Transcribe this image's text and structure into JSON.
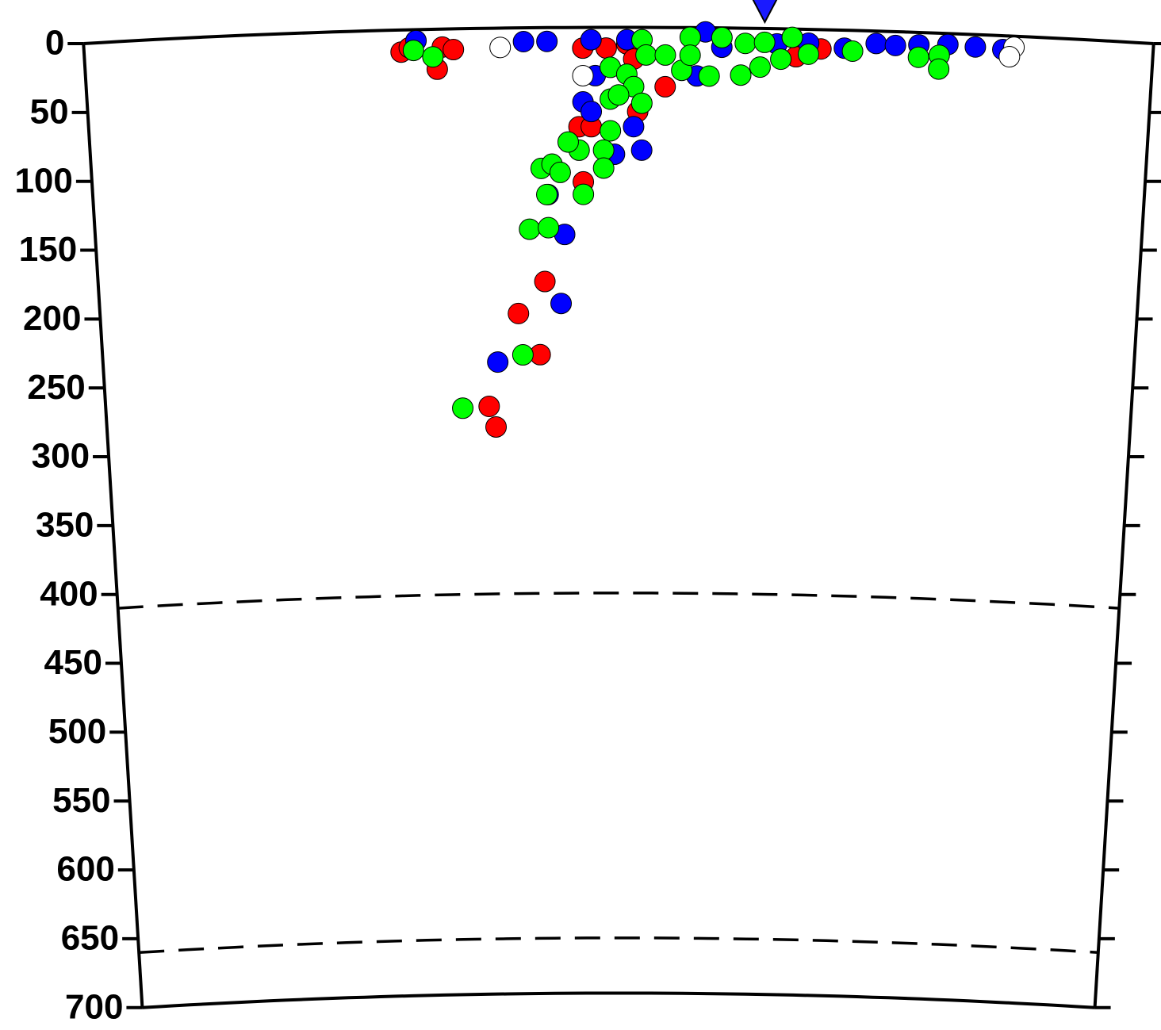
{
  "chart_data": {
    "type": "scatter",
    "xlim": [
      -388,
      388
    ],
    "ylim": [
      0,
      700
    ],
    "yticks": [
      0,
      50,
      100,
      150,
      200,
      250,
      300,
      350,
      400,
      450,
      500,
      550,
      600,
      650,
      700
    ],
    "reference_depths": [
      410,
      660
    ],
    "station": {
      "x": 106,
      "color": "#1a1aff"
    },
    "series": [
      {
        "color": "#ff0000",
        "x": [
          -158,
          -152,
          -132,
          -128,
          -120,
          -26,
          -9,
          6,
          34,
          14,
          -29,
          -20,
          -26,
          -55,
          -75,
          -59,
          -98,
          -93,
          129,
          147,
          11
        ],
        "y": [
          16,
          13,
          29,
          13,
          15,
          15,
          15,
          12,
          43,
          61,
          72,
          72,
          112,
          184,
          207,
          237,
          274,
          289,
          20,
          14,
          23
        ]
      },
      {
        "color": "#0000ff",
        "x": [
          -147,
          -69,
          -52,
          -20,
          6,
          63,
          187,
          201,
          218,
          239,
          259,
          279,
          164,
          -17,
          -26,
          -20,
          11,
          17,
          -3,
          -52,
          -40,
          -43,
          -91,
          57,
          75,
          115,
          138
        ],
        "y": [
          8,
          10,
          10,
          9,
          9,
          3,
          9,
          10,
          9,
          8,
          9,
          10,
          13,
          35,
          54,
          61,
          72,
          89,
          92,
          121,
          150,
          200,
          242,
          35,
          14,
          11,
          10
        ]
      },
      {
        "color": "#00ff00",
        "x": [
          -149,
          -135,
          17,
          20,
          -6,
          6,
          11,
          -6,
          17,
          -6,
          -11,
          -11,
          -29,
          -37,
          -57,
          -49,
          -43,
          -26,
          -53,
          -66,
          -52,
          -72,
          -118,
          52,
          75,
          92,
          106,
          126,
          118,
          103,
          89,
          66,
          46,
          138,
          170,
          218,
          233,
          233,
          34,
          0,
          52
        ],
        "y": [
          15,
          20,
          9,
          20,
          29,
          34,
          43,
          52,
          55,
          75,
          89,
          102,
          89,
          83,
          102,
          99,
          105,
          121,
          121,
          146,
          145,
          237,
          275,
          7,
          7,
          11,
          10,
          6,
          22,
          28,
          34,
          35,
          31,
          18,
          15,
          18,
          16,
          26,
          20,
          49,
          20
        ]
      },
      {
        "color": "#ffffff",
        "x": [
          -86,
          -26,
          287,
          284
        ],
        "y": [
          14,
          35,
          8,
          15
        ]
      }
    ]
  }
}
